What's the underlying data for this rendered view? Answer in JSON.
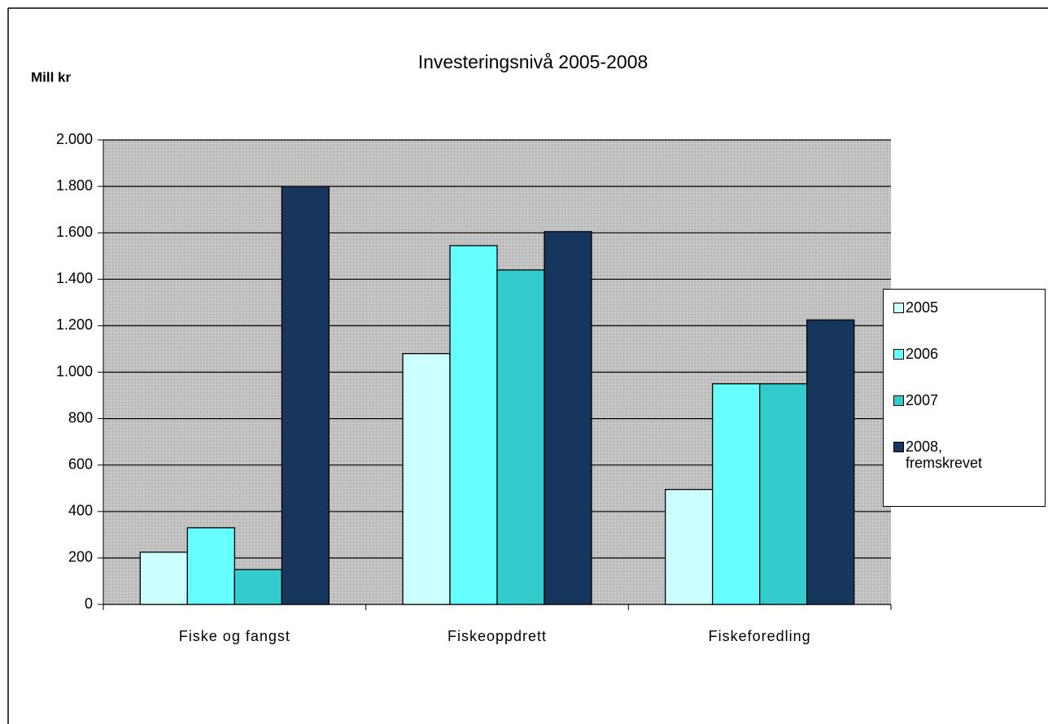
{
  "chart_data": {
    "type": "bar",
    "title": "Investeringsnivå 2005-2008",
    "y_label": "Mill kr",
    "categories": [
      "Fiske og fangst",
      "Fiskeoppdrett",
      "Fiskeforedling"
    ],
    "series": [
      {
        "name": "2005",
        "color": "#ccffff",
        "values": [
          225,
          1080,
          495
        ]
      },
      {
        "name": "2006",
        "color": "#66ffff",
        "values": [
          330,
          1545,
          950
        ]
      },
      {
        "name": "2007",
        "color": "#33cccc",
        "values": [
          150,
          1440,
          950
        ]
      },
      {
        "name": "2008, fremskrevet",
        "color": "#17365d",
        "values": [
          1800,
          1605,
          1225
        ]
      }
    ],
    "ylim": [
      0,
      2000
    ],
    "yticks": [
      0,
      200,
      400,
      600,
      800,
      {
        "value": 1000,
        "label": "1.000"
      },
      {
        "value": 1200,
        "label": "1.200"
      },
      {
        "value": 1400,
        "label": "1.400"
      },
      {
        "value": 1600,
        "label": "1.600"
      },
      {
        "value": 1800,
        "label": "1.800"
      },
      {
        "value": 2000,
        "label": "2.000"
      }
    ],
    "grid": true,
    "legend": "right"
  }
}
